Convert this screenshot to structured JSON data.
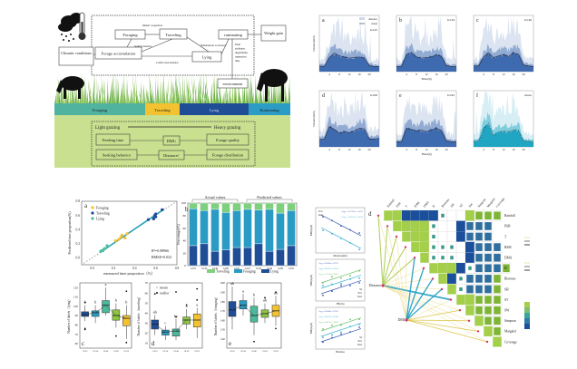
{
  "colors": {
    "foraging": "#4fb3a0",
    "traveling": "#f2c230",
    "lying": "#1f4e96",
    "ruminating": "#2b9cc4",
    "green_panel": "#c8e08f",
    "bar_traveling": "#7fcf7f",
    "bar_foraging": "#2a9bc4",
    "bar_lying": "#1f4e96",
    "ts_blue": "#3a67ae",
    "ts_cyan": "#1aa3c0"
  },
  "diagram": {
    "climatic": "Climatic conditions",
    "foraging": "Foraging",
    "traveling": "Traveling",
    "forage_accumulation": "Forage accumulation",
    "lying": "Lying",
    "ruminating": "ruminating",
    "weight_gain": "Weight gain",
    "environment": "environment",
    "mutual": "Mutual cooperation",
    "seeking": "Seeking behavior",
    "comfort": "Comfort and satiation",
    "simultaneous": "Simultaneous occurrence",
    "plant": [
      "Plant",
      "attributes,",
      "digestibility,",
      "rumination",
      "time"
    ],
    "bar": [
      "Foraging",
      "Traveling",
      "Lying",
      "Ruminating"
    ],
    "light": "Light grazing",
    "heavy": "Heavy grazing",
    "feeding_time": "Feeding time",
    "dmi": "DMI↓",
    "forage_quality": "Forage quality",
    "seeking_behavior": "Seeking behavior",
    "distance": "Distance↑",
    "forage_distribution": "Forage distribution"
  },
  "timeseries": {
    "ylabel": "Distance(m/h)",
    "xlabel": "Time(h)",
    "xticks": [
      "4",
      "8",
      "12",
      "16",
      "20"
    ],
    "legend": {
      "distance": "distance",
      "mean": "mean"
    },
    "panels": [
      {
        "letter": "a",
        "label": "GI.25",
        "mean": [
          100,
          90,
          250,
          330,
          280,
          260,
          240,
          250,
          260,
          240,
          110,
          90,
          90
        ]
      },
      {
        "letter": "b",
        "label": "GI.34",
        "mean": [
          90,
          90,
          300,
          340,
          260,
          240,
          250,
          260,
          300,
          270,
          110,
          90,
          90
        ]
      },
      {
        "letter": "c",
        "label": "GI.46",
        "mean": [
          100,
          100,
          260,
          330,
          250,
          280,
          300,
          270,
          330,
          310,
          120,
          100,
          90
        ]
      },
      {
        "letter": "d",
        "label": "GI.69",
        "mean": [
          130,
          140,
          360,
          310,
          240,
          270,
          250,
          280,
          330,
          320,
          140,
          140,
          150
        ]
      },
      {
        "letter": "e",
        "label": "GI.92",
        "mean": [
          90,
          90,
          330,
          310,
          280,
          300,
          270,
          300,
          330,
          290,
          110,
          90,
          90
        ]
      },
      {
        "letter": "f",
        "label": "mean",
        "mean": [
          100,
          100,
          320,
          420,
          200,
          260,
          280,
          270,
          300,
          290,
          110,
          100,
          90
        ]
      }
    ]
  },
  "chart_data": [
    {
      "type": "scatter",
      "panel": "a",
      "xlabel": "measured time proportion（%）",
      "ylabel": "Predicted time proportion(%)",
      "xlim": [
        -0.1,
        0.8
      ],
      "ylim": [
        -0.1,
        0.8
      ],
      "xticks": [
        "0.0",
        "0.2",
        "0.4",
        "0.6",
        "0.8"
      ],
      "yticks": [
        "0.0",
        "0.2",
        "0.4",
        "0.6",
        "0.8"
      ],
      "annotations": [
        "R²=0.98966",
        "RMSE=0.022"
      ],
      "series": [
        {
          "name": "Foraging",
          "points": [
            [
              0.22,
              0.24
            ],
            [
              0.25,
              0.26
            ],
            [
              0.28,
              0.32
            ],
            [
              0.31,
              0.28
            ],
            [
              0.33,
              0.34
            ],
            [
              0.27,
              0.29
            ]
          ]
        },
        {
          "name": "Traveling",
          "points": [
            [
              0.53,
              0.54
            ],
            [
              0.58,
              0.56
            ],
            [
              0.59,
              0.6
            ],
            [
              0.6,
              0.62
            ],
            [
              0.6,
              0.58
            ],
            [
              0.66,
              0.68
            ],
            [
              0.58,
              0.55
            ]
          ]
        },
        {
          "name": "Lying",
          "points": [
            [
              0.08,
              0.09
            ],
            [
              0.1,
              0.1
            ],
            [
              0.11,
              0.12
            ],
            [
              0.12,
              0.13
            ],
            [
              0.14,
              0.17
            ],
            [
              0.09,
              0.1
            ]
          ]
        }
      ]
    },
    {
      "type": "bar",
      "stacked": true,
      "panel": "b",
      "ylabel": "Percentage(%)",
      "ylim": [
        0,
        100
      ],
      "yticks": [
        "0",
        "20",
        "40",
        "60",
        "80",
        "100"
      ],
      "groups": [
        "Actual values",
        "Predicted values"
      ],
      "categories": [
        "GI.25",
        "GI.34",
        "GI.46",
        "GI.69",
        "GI.92",
        "GI.25",
        "GI.34",
        "GI.46",
        "GI.69",
        "GI.92"
      ],
      "series": [
        {
          "name": "Lying",
          "values": [
            32,
            35,
            23,
            25,
            29,
            29,
            35,
            23,
            26,
            32
          ]
        },
        {
          "name": "Foraging",
          "values": [
            59,
            53,
            67,
            60,
            59,
            61,
            54,
            67,
            58,
            56
          ]
        },
        {
          "name": "Traveling",
          "values": [
            9,
            12,
            10,
            15,
            12,
            10,
            11,
            10,
            16,
            12
          ]
        }
      ]
    },
    {
      "type": "box",
      "panel": "c",
      "ylabel": "Number of labels（lying）",
      "ylim": [
        55,
        125
      ],
      "yticks": [
        "60",
        "70",
        "80",
        "90",
        "100",
        "110",
        "120"
      ],
      "categories": [
        "GI.25",
        "GI.34",
        "GI.46",
        "GI.69",
        "GI.92"
      ],
      "boxes": [
        [
          84,
          89,
          91,
          94,
          101
        ],
        [
          82,
          89,
          93,
          95,
          101
        ],
        [
          90,
          93,
          101,
          106,
          120
        ],
        [
          77,
          85,
          90,
          96,
          103
        ],
        [
          65,
          79,
          87,
          90,
          101
        ]
      ],
      "letters": [
        "b",
        "b",
        "a",
        "b",
        "b"
      ],
      "outliers": [
        [
          75,
          76,
          104
        ],
        [],
        [],
        [
          68
        ],
        [
          61,
          116
        ]
      ]
    },
    {
      "type": "box",
      "panel": "d",
      "ylabel": "Number of labels（traveling）",
      "ylim": [
        5,
        70
      ],
      "yticks": [
        "10",
        "20",
        "30",
        "40",
        "50",
        "60",
        "70"
      ],
      "legend": [
        "mean",
        "outlier"
      ],
      "categories": [
        "GI.25",
        "GI.34",
        "GI.46",
        "GI.69",
        "GI.92"
      ],
      "boxes": [
        [
          18,
          24,
          29,
          33,
          38
        ],
        [
          13,
          18,
          21,
          23,
          27
        ],
        [
          13,
          17,
          22,
          24,
          34
        ],
        [
          24,
          29,
          33,
          36,
          44
        ],
        [
          15,
          26,
          33,
          39,
          45
        ]
      ],
      "letters": [
        "ab",
        "c",
        "bc",
        "a",
        "a"
      ],
      "outliers": [
        [
          59
        ],
        [],
        [
          61,
          36
        ],
        [
          48
        ],
        [
          53,
          64
        ]
      ]
    },
    {
      "type": "box",
      "panel": "e",
      "ylabel": "Number of labels（foraging）",
      "ylim": [
        130,
        200
      ],
      "yticks": [
        "140",
        "150",
        "160",
        "170",
        "180",
        "190",
        "200"
      ],
      "categories": [
        "GI.25",
        "GI.34",
        "GI.46",
        "GI.69",
        "GI.92"
      ],
      "boxes": [
        [
          150,
          164,
          171,
          180,
          196
        ],
        [
          165,
          172,
          176,
          181,
          188
        ],
        [
          144,
          158,
          165,
          175,
          184
        ],
        [
          157,
          163,
          167,
          171,
          178
        ],
        [
          154,
          164,
          170,
          176,
          186
        ]
      ],
      "letters": [
        "ab",
        "a",
        "b",
        "ab",
        "ab"
      ],
      "outliers": [
        [],
        [],
        [
          137
        ],
        [
          184
        ],
        [
          151,
          190
        ]
      ]
    }
  ],
  "box_legend": [
    "Traveling",
    "Foraging",
    "Lying"
  ],
  "regressions": {
    "panels": [
      {
        "xlabel": "Distance(km)",
        "ylabel": "DMI(kg/d)",
        "legend": [
          "Trav",
          "Rest"
        ],
        "eqs": [
          "Avg y=-56.7395x+1.5621",
          "Avg y=-74.8312x+1.0742"
        ]
      },
      {
        "xlabel": "FH(cm)",
        "ylabel": "DMI(kg/d)",
        "legend": [
          "Sd",
          "Trav",
          "Rest"
        ],
        "eqs": [
          "Avg y=0.0604x+0.2957",
          "Avg y=0.0850x+0.0106",
          "Avg y=0.0710x+0.0451"
        ]
      },
      {
        "xlabel": "Biomass",
        "ylabel": "DMI(kg/d)",
        "legend": [
          "Sd",
          "Trav",
          "Rest"
        ],
        "eqs": [
          "Avg y=0.0008x+0.7853",
          "Avg y=0.0079x+0.1983",
          "Avg y=0.0071x+0.0982"
        ]
      }
    ]
  },
  "mantel": {
    "letter": "d",
    "variables": [
      "Rainfall",
      "PAR",
      "T",
      "RSM",
      "DMA",
      "H",
      "Biomass",
      "SH",
      "ST",
      "SW",
      "Simpson",
      "Margalef",
      "Coverage"
    ],
    "matrix": [
      "GBBBBs..Gggg",
      "GGGs..Bbbb",
      "GGs..Bbbb",
      "Gsss.Bbbb",
      "sss.Bbbb",
      "GGBsbbbg",
      "Bsbbbg",
      "sbbbg",
      "Gggg",
      "ggg",
      "gg",
      "g",
      ""
    ],
    "nodes": [
      "Distance",
      "DMI"
    ]
  }
}
